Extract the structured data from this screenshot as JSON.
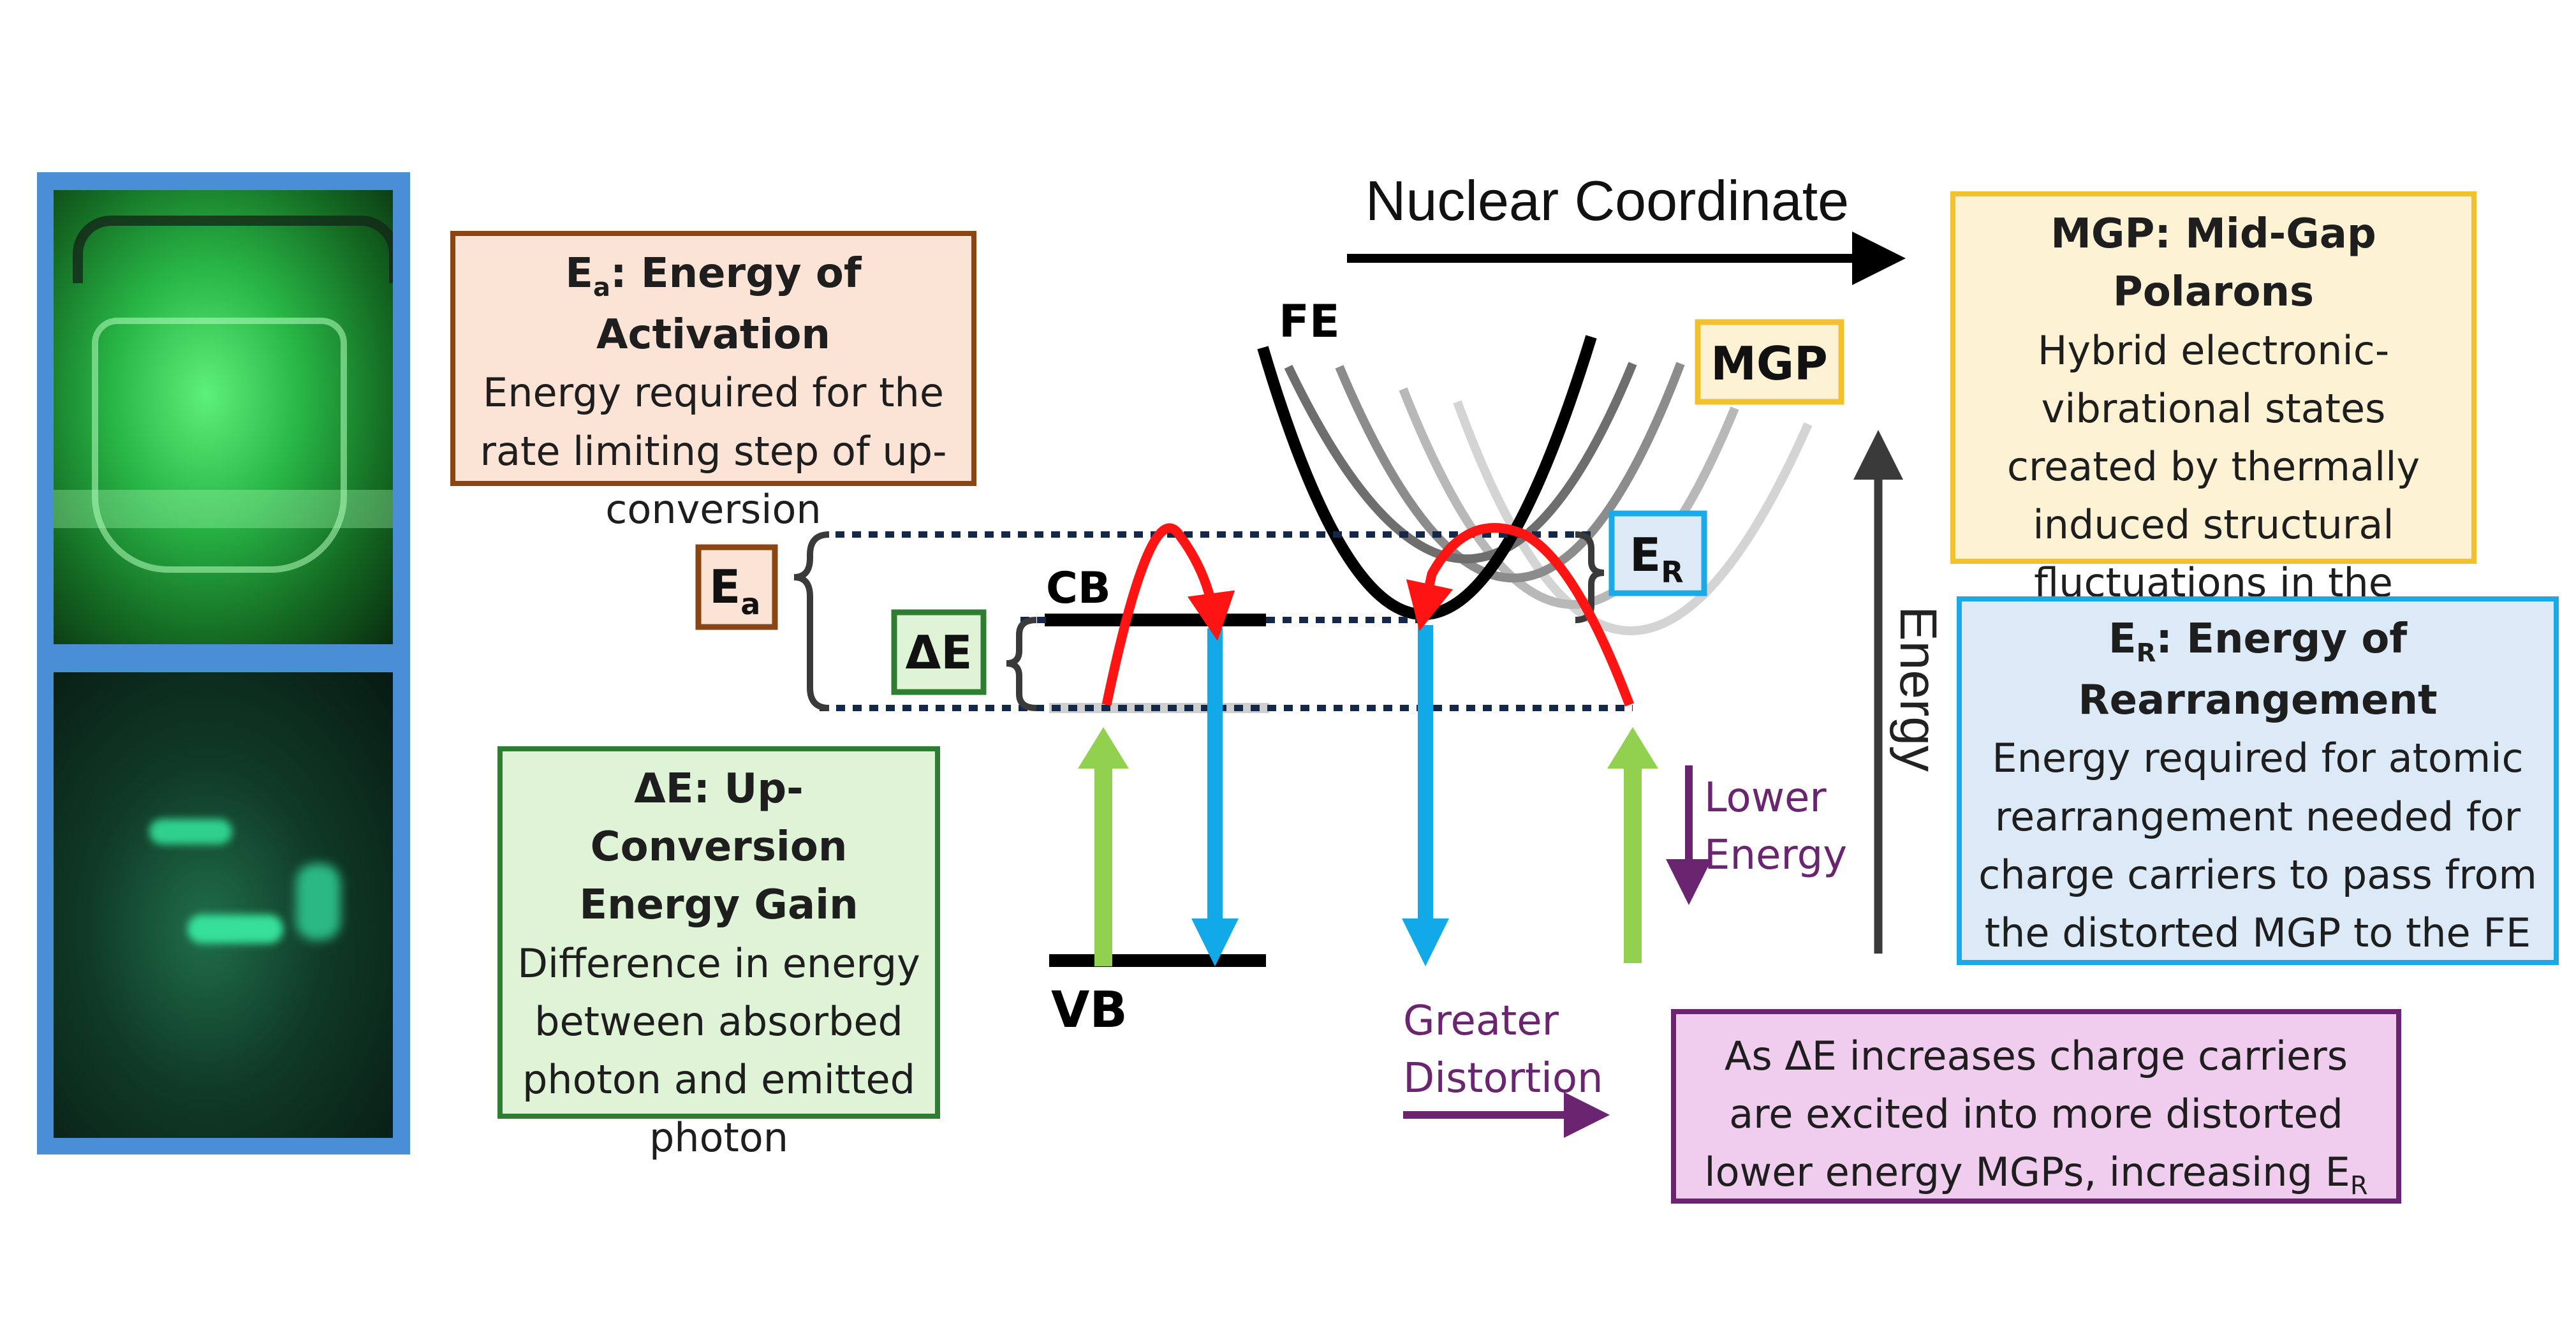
{
  "colors": {
    "photo_frame": "#4a8ed6",
    "ea_border": "#8b4513",
    "ea_fill": "#fbe3d6",
    "de_border": "#2e7d32",
    "de_fill": "#dff3d6",
    "mgp_border": "#f2c12e",
    "mgp_fill": "#fdf3d4",
    "er_border": "#1aaae8",
    "er_fill": "#dceaf8",
    "purple": "#6b2470",
    "purple_fill": "#f0cdef",
    "red_arrow": "#ff1414",
    "blue_arrow": "#12a9e8",
    "green_arrow": "#92d050",
    "dotted_line": "#14284b",
    "fe_curve": "#000000"
  },
  "photos": [
    {
      "name": "photo-bright-green-glow",
      "description_icon": "photo-icon"
    },
    {
      "name": "photo-dim-green-glow",
      "description_icon": "photo-icon"
    }
  ],
  "boxes": {
    "ea": {
      "title_symbol": "E",
      "title_sub": "a",
      "title_rest": ": Energy of Activation",
      "body": "Energy required for the rate limiting step of up-conversion"
    },
    "de": {
      "title": "ΔE: Up-Conversion Energy Gain",
      "body": "Difference in energy between absorbed photon and emitted photon"
    },
    "mgp": {
      "title": "MGP: Mid-Gap Polarons",
      "body": "Hybrid electronic-vibrational states created by thermally induced structural fluctuations in the crystal lattice"
    },
    "er": {
      "title_symbol": "E",
      "title_sub": "R",
      "title_rest": ": Energy of Rearrangement",
      "body": "Energy required for atomic rearrangement needed for charge carriers to pass from the distorted MGP to  the FE"
    },
    "summary": {
      "text": "As ΔE increases charge carriers are excited into more distorted lower energy MGPs, increasing E",
      "sub": "R"
    }
  },
  "diagram_labels": {
    "nuclear_coordinate": "Nuclear Coordinate",
    "energy": "Energy",
    "fe": "FE",
    "mgp": "MGP",
    "er_symbol": "E",
    "er_sub": "R",
    "ea_symbol": "E",
    "ea_sub": "a",
    "delta_e": "ΔE",
    "cb": "CB",
    "vb": "VB",
    "lower_energy_1": "Lower",
    "lower_energy_2": "Energy",
    "greater_distortion_1": "Greater",
    "greater_distortion_2": "Distortion"
  }
}
